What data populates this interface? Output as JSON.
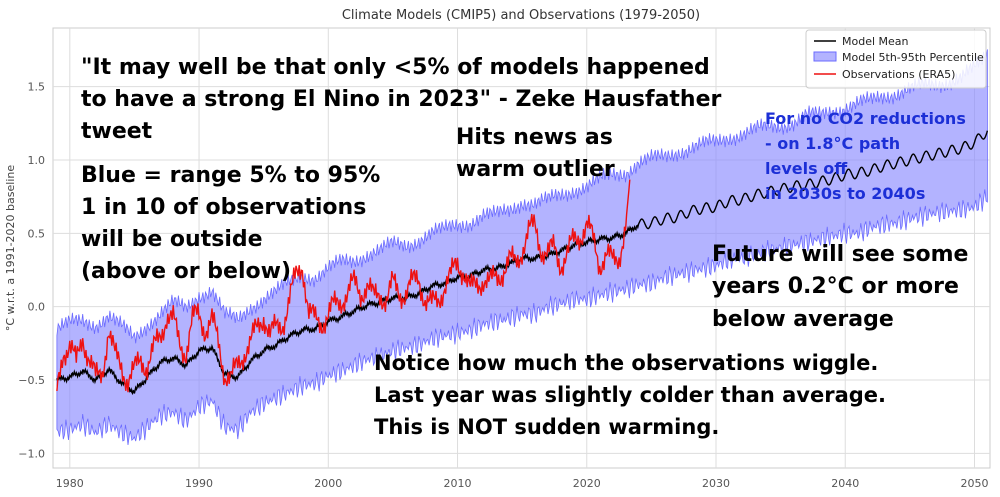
{
  "chart_data": {
    "type": "line",
    "title": "Climate Models (CMIP5) and Observations (1979-2050)",
    "xlabel": "",
    "ylabel": "°C w.r.t. a 1991-2020 baseline",
    "xlim": [
      1978.7,
      2051.2
    ],
    "ylim": [
      -1.1,
      1.9
    ],
    "x_ticks": [
      1980,
      1990,
      2000,
      2010,
      2020,
      2030,
      2040,
      2050
    ],
    "y_ticks": [
      -1.0,
      -0.5,
      0.0,
      0.5,
      1.0,
      1.5
    ],
    "x_tick_labels": [
      "1980",
      "1990",
      "2000",
      "2010",
      "2020",
      "2030",
      "2040",
      "2050"
    ],
    "y_tick_labels": [
      "−1.0",
      "−0.5",
      "0.0",
      "0.5",
      "1.0",
      "1.5"
    ],
    "grid": true,
    "legend_position": "top-right",
    "series": [
      {
        "name": "Model Mean",
        "color": "#000000",
        "x": [
          1979,
          1980,
          1981,
          1982,
          1983,
          1984,
          1985,
          1986,
          1987,
          1988,
          1989,
          1990,
          1991,
          1992,
          1993,
          1994,
          1995,
          1996,
          1997,
          1998,
          1999,
          2000,
          2001,
          2002,
          2003,
          2004,
          2005,
          2006,
          2007,
          2008,
          2009,
          2010,
          2011,
          2012,
          2013,
          2014,
          2015,
          2016,
          2017,
          2018,
          2019,
          2020,
          2021,
          2022,
          2023,
          2024,
          2025,
          2026,
          2027,
          2028,
          2029,
          2030,
          2031,
          2032,
          2033,
          2034,
          2035,
          2036,
          2037,
          2038,
          2039,
          2040,
          2041,
          2042,
          2043,
          2044,
          2045,
          2046,
          2047,
          2048,
          2049,
          2050,
          2051
        ],
        "values": [
          -0.5,
          -0.48,
          -0.44,
          -0.5,
          -0.43,
          -0.52,
          -0.58,
          -0.48,
          -0.38,
          -0.35,
          -0.4,
          -0.3,
          -0.28,
          -0.46,
          -0.48,
          -0.37,
          -0.3,
          -0.26,
          -0.2,
          -0.16,
          -0.15,
          -0.1,
          -0.07,
          -0.03,
          0.01,
          0.03,
          0.06,
          0.06,
          0.09,
          0.14,
          0.16,
          0.2,
          0.21,
          0.25,
          0.26,
          0.29,
          0.33,
          0.33,
          0.35,
          0.38,
          0.42,
          0.44,
          0.46,
          0.47,
          0.5,
          0.56,
          0.57,
          0.6,
          0.61,
          0.65,
          0.67,
          0.68,
          0.72,
          0.73,
          0.76,
          0.78,
          0.8,
          0.82,
          0.83,
          0.85,
          0.87,
          0.9,
          0.91,
          0.93,
          0.96,
          0.98,
          1.0,
          1.02,
          1.04,
          1.06,
          1.08,
          1.12,
          1.2
        ]
      },
      {
        "name": "Model 5th-95th Percentile",
        "color": "#6b6bff",
        "x": [
          1979,
          1980,
          1981,
          1982,
          1983,
          1984,
          1985,
          1986,
          1987,
          1988,
          1989,
          1990,
          1991,
          1992,
          1993,
          1994,
          1995,
          1996,
          1997,
          1998,
          1999,
          2000,
          2001,
          2002,
          2003,
          2004,
          2005,
          2006,
          2007,
          2008,
          2009,
          2010,
          2011,
          2012,
          2013,
          2014,
          2015,
          2016,
          2017,
          2018,
          2019,
          2020,
          2021,
          2022,
          2023,
          2024,
          2025,
          2026,
          2027,
          2028,
          2029,
          2030,
          2031,
          2032,
          2033,
          2034,
          2035,
          2036,
          2037,
          2038,
          2039,
          2040,
          2041,
          2042,
          2043,
          2044,
          2045,
          2046,
          2047,
          2048,
          2049,
          2050,
          2051
        ],
        "lower": [
          -0.85,
          -0.84,
          -0.8,
          -0.86,
          -0.8,
          -0.86,
          -0.9,
          -0.82,
          -0.74,
          -0.72,
          -0.78,
          -0.68,
          -0.64,
          -0.82,
          -0.84,
          -0.72,
          -0.66,
          -0.62,
          -0.58,
          -0.54,
          -0.52,
          -0.47,
          -0.44,
          -0.4,
          -0.36,
          -0.34,
          -0.3,
          -0.28,
          -0.26,
          -0.22,
          -0.2,
          -0.18,
          -0.16,
          -0.12,
          -0.1,
          -0.08,
          -0.05,
          -0.05,
          0.0,
          0.02,
          0.05,
          0.05,
          0.08,
          0.1,
          0.12,
          0.15,
          0.16,
          0.2,
          0.22,
          0.24,
          0.26,
          0.28,
          0.32,
          0.33,
          0.36,
          0.38,
          0.4,
          0.42,
          0.44,
          0.46,
          0.48,
          0.5,
          0.5,
          0.54,
          0.56,
          0.57,
          0.6,
          0.62,
          0.64,
          0.65,
          0.66,
          0.68,
          0.75
        ],
        "upper": [
          -0.15,
          -0.12,
          -0.1,
          -0.12,
          -0.06,
          -0.14,
          -0.22,
          -0.12,
          -0.04,
          0.02,
          -0.02,
          0.08,
          0.12,
          -0.06,
          -0.1,
          0.0,
          0.06,
          0.1,
          0.16,
          0.22,
          0.2,
          0.25,
          0.3,
          0.32,
          0.36,
          0.38,
          0.42,
          0.42,
          0.46,
          0.5,
          0.52,
          0.56,
          0.58,
          0.62,
          0.62,
          0.66,
          0.72,
          0.7,
          0.72,
          0.76,
          0.8,
          0.82,
          0.86,
          0.9,
          0.92,
          0.98,
          1.0,
          1.02,
          1.06,
          1.08,
          1.1,
          1.12,
          1.16,
          1.18,
          1.2,
          1.22,
          1.24,
          1.26,
          1.3,
          1.3,
          1.34,
          1.36,
          1.38,
          1.4,
          1.44,
          1.46,
          1.48,
          1.5,
          1.52,
          1.54,
          1.56,
          1.62,
          1.72
        ]
      },
      {
        "name": "Observations (ERA5)",
        "color": "#ee1111",
        "x": [
          1979.0,
          1979.5,
          1980.0,
          1980.5,
          1981.0,
          1981.5,
          1982.0,
          1982.5,
          1983.0,
          1983.5,
          1984.0,
          1984.5,
          1985.0,
          1985.5,
          1986.0,
          1986.5,
          1987.0,
          1987.5,
          1988.0,
          1988.5,
          1989.0,
          1989.5,
          1990.0,
          1990.5,
          1991.0,
          1991.5,
          1992.0,
          1992.5,
          1993.0,
          1993.5,
          1994.0,
          1994.5,
          1995.0,
          1995.5,
          1996.0,
          1996.5,
          1997.0,
          1997.5,
          1998.0,
          1998.5,
          1999.0,
          1999.5,
          2000.0,
          2000.5,
          2001.0,
          2001.5,
          2002.0,
          2002.5,
          2003.0,
          2003.5,
          2004.0,
          2004.5,
          2005.0,
          2005.5,
          2006.0,
          2006.5,
          2007.0,
          2007.5,
          2008.0,
          2008.5,
          2009.0,
          2009.5,
          2010.0,
          2010.5,
          2011.0,
          2011.5,
          2012.0,
          2012.5,
          2013.0,
          2013.5,
          2014.0,
          2014.5,
          2015.0,
          2015.5,
          2016.0,
          2016.5,
          2017.0,
          2017.5,
          2018.0,
          2018.5,
          2019.0,
          2019.5,
          2020.0,
          2020.5,
          2021.0,
          2021.5,
          2022.0,
          2022.5,
          2023.0,
          2023.4
        ],
        "values": [
          -0.6,
          -0.3,
          -0.25,
          -0.4,
          -0.2,
          -0.35,
          -0.5,
          -0.45,
          -0.15,
          -0.35,
          -0.4,
          -0.5,
          -0.45,
          -0.35,
          -0.4,
          -0.3,
          -0.2,
          -0.05,
          -0.1,
          -0.25,
          -0.3,
          -0.1,
          -0.05,
          -0.15,
          -0.1,
          -0.25,
          -0.45,
          -0.5,
          -0.4,
          -0.3,
          -0.25,
          -0.15,
          -0.05,
          -0.2,
          -0.15,
          -0.1,
          0.05,
          0.2,
          0.3,
          -0.05,
          -0.1,
          -0.1,
          -0.05,
          0.0,
          0.05,
          0.1,
          0.15,
          0.1,
          0.15,
          0.05,
          0.1,
          0.05,
          0.15,
          0.1,
          0.1,
          0.15,
          0.2,
          0.05,
          0.0,
          0.05,
          0.15,
          0.2,
          0.3,
          0.25,
          0.1,
          0.15,
          0.2,
          0.15,
          0.2,
          0.25,
          0.3,
          0.3,
          0.4,
          0.5,
          0.55,
          0.4,
          0.35,
          0.4,
          0.3,
          0.35,
          0.45,
          0.5,
          0.55,
          0.45,
          0.3,
          0.35,
          0.3,
          0.35,
          0.55,
          0.93
        ]
      }
    ],
    "annotations": [
      {
        "text": "\"It may well be that only <5% of models happened",
        "color": "#000000"
      },
      {
        "text": "to have a strong El Nino in 2023\" - Zeke Hausfather",
        "color": "#000000"
      },
      {
        "text": "tweet",
        "color": "#000000"
      },
      {
        "text": "Blue = range 5% to 95%",
        "color": "#000000"
      },
      {
        "text": "1 in 10 of observations",
        "color": "#000000"
      },
      {
        "text": "will be outside",
        "color": "#000000"
      },
      {
        "text": "(above or below)",
        "color": "#000000"
      },
      {
        "text": "Hits news as",
        "color": "#000000"
      },
      {
        "text": "warm outlier",
        "color": "#000000"
      },
      {
        "text": "For no CO2 reductions",
        "color": "#1c2fd6"
      },
      {
        "text": "- on 1.8°C path",
        "color": "#1c2fd6"
      },
      {
        "text": "levels off",
        "color": "#1c2fd6"
      },
      {
        "text": "in 2030s to 2040s",
        "color": "#1c2fd6"
      },
      {
        "text": "Future will see some",
        "color": "#000000"
      },
      {
        "text": "years 0.2°C or more",
        "color": "#000000"
      },
      {
        "text": "below average",
        "color": "#000000"
      },
      {
        "text": "Notice how much the observations wiggle.",
        "color": "#000000"
      },
      {
        "text": "Last year was slightly colder than average.",
        "color": "#000000"
      },
      {
        "text": "This is NOT sudden warming.",
        "color": "#000000"
      }
    ]
  }
}
